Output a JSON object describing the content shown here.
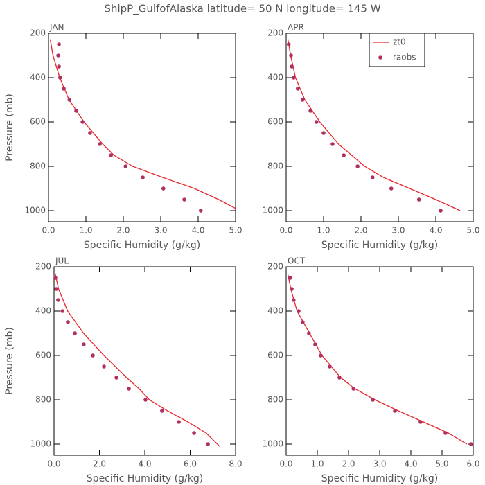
{
  "title": "ShipP_GulfofAlaska  latitude= 50 N longitude= 145 W",
  "chart_data": [
    {
      "type": "profile",
      "title": "JAN",
      "xlabel": "Specific Humidity (g/kg)",
      "ylabel": "Pressure (mb)",
      "xlim": [
        0,
        5
      ],
      "ylim": [
        200,
        1050
      ],
      "y_inverted": true,
      "xticks": [
        {
          "value": 0,
          "label": "0.0"
        },
        {
          "value": 1,
          "label": "1.0"
        },
        {
          "value": 2,
          "label": "2.0"
        },
        {
          "value": 3,
          "label": "3.0"
        },
        {
          "value": 4,
          "label": "4.0"
        },
        {
          "value": 5,
          "label": "5.0"
        }
      ],
      "yticks": [
        200,
        400,
        600,
        800,
        1000
      ],
      "series": [
        {
          "type": "line",
          "color": "#e8262a",
          "y": [
            230,
            300,
            400,
            500,
            600,
            700,
            750,
            800,
            850,
            900,
            950,
            990
          ],
          "x": [
            0.05,
            0.12,
            0.3,
            0.55,
            0.95,
            1.45,
            1.75,
            2.25,
            3.05,
            3.9,
            4.55,
            5.0
          ]
        },
        {
          "type": "scatter",
          "color": "#b03060",
          "y": [
            250,
            300,
            350,
            400,
            450,
            500,
            550,
            600,
            650,
            700,
            750,
            800,
            850,
            900,
            950,
            1000
          ],
          "x": [
            0.28,
            0.26,
            0.28,
            0.31,
            0.41,
            0.56,
            0.74,
            0.91,
            1.11,
            1.37,
            1.67,
            2.06,
            2.52,
            3.07,
            3.63,
            4.07
          ]
        }
      ]
    },
    {
      "type": "profile",
      "title": "APR",
      "xlabel": "Specific Humidity (g/kg)",
      "legend": "upper right",
      "xlim": [
        0,
        5
      ],
      "ylim": [
        200,
        1050
      ],
      "y_inverted": true,
      "xticks": [
        {
          "value": 0,
          "label": "0.0"
        },
        {
          "value": 1,
          "label": "1.0"
        },
        {
          "value": 2,
          "label": "2.0"
        },
        {
          "value": 3,
          "label": "3.0"
        },
        {
          "value": 4,
          "label": "4.0"
        },
        {
          "value": 5,
          "label": "5.0"
        }
      ],
      "yticks": [
        200,
        400,
        600,
        800,
        1000
      ],
      "series": [
        {
          "name": "zt0",
          "type": "line",
          "color": "#e8262a",
          "y": [
            230,
            300,
            400,
            500,
            600,
            700,
            800,
            850,
            900,
            950,
            1000
          ],
          "x": [
            0.05,
            0.12,
            0.25,
            0.5,
            0.9,
            1.4,
            2.1,
            2.6,
            3.3,
            4.0,
            4.65
          ]
        },
        {
          "name": "raobs",
          "type": "scatter",
          "color": "#b03060",
          "y": [
            250,
            300,
            350,
            400,
            450,
            500,
            550,
            600,
            650,
            700,
            750,
            800,
            850,
            900,
            950,
            1000
          ],
          "x": [
            0.07,
            0.13,
            0.15,
            0.2,
            0.31,
            0.44,
            0.65,
            0.81,
            1.0,
            1.24,
            1.54,
            1.91,
            2.31,
            2.81,
            3.55,
            4.13
          ]
        }
      ]
    },
    {
      "type": "profile",
      "title": "JUL",
      "xlabel": "Specific Humidity (g/kg)",
      "ylabel": "Pressure (mb)",
      "xlim": [
        0,
        8
      ],
      "ylim": [
        200,
        1050
      ],
      "y_inverted": true,
      "xticks": [
        {
          "value": 0,
          "label": "0.0"
        },
        {
          "value": 2,
          "label": "2.0"
        },
        {
          "value": 4,
          "label": "4.0"
        },
        {
          "value": 6,
          "label": "6.0"
        },
        {
          "value": 8,
          "label": "8.0"
        }
      ],
      "yticks": [
        200,
        400,
        600,
        800,
        1000
      ],
      "series": [
        {
          "type": "line",
          "color": "#e8262a",
          "y": [
            230,
            300,
            400,
            500,
            600,
            700,
            750,
            800,
            850,
            900,
            950,
            1010
          ],
          "x": [
            0.05,
            0.2,
            0.6,
            1.3,
            2.2,
            3.2,
            3.75,
            4.2,
            5.0,
            5.9,
            6.7,
            7.3
          ]
        },
        {
          "type": "scatter",
          "color": "#b03060",
          "y": [
            250,
            300,
            350,
            400,
            450,
            500,
            550,
            600,
            650,
            700,
            750,
            800,
            850,
            900,
            950,
            1000
          ],
          "x": [
            0.06,
            0.1,
            0.18,
            0.37,
            0.61,
            0.92,
            1.31,
            1.71,
            2.2,
            2.75,
            3.3,
            4.03,
            4.76,
            5.5,
            6.17,
            6.78
          ]
        }
      ]
    },
    {
      "type": "profile",
      "title": "OCT",
      "xlabel": "Specific Humidity (g/kg)",
      "xlim": [
        0,
        6
      ],
      "ylim": [
        200,
        1050
      ],
      "y_inverted": true,
      "xticks": [
        {
          "value": 0,
          "label": "0.0"
        },
        {
          "value": 1,
          "label": "1.0"
        },
        {
          "value": 2,
          "label": "2.0"
        },
        {
          "value": 3,
          "label": "3.0"
        },
        {
          "value": 4,
          "label": "4.0"
        },
        {
          "value": 5,
          "label": "5.0"
        },
        {
          "value": 6,
          "label": "6.0"
        }
      ],
      "yticks": [
        200,
        400,
        600,
        800,
        1000
      ],
      "series": [
        {
          "type": "line",
          "color": "#e8262a",
          "y": [
            230,
            300,
            400,
            500,
            600,
            700,
            750,
            800,
            850,
            900,
            950,
            1000
          ],
          "x": [
            0.05,
            0.15,
            0.35,
            0.75,
            1.15,
            1.75,
            2.2,
            2.85,
            3.6,
            4.4,
            5.2,
            5.8
          ]
        },
        {
          "type": "scatter",
          "color": "#b03060",
          "y": [
            250,
            300,
            350,
            400,
            450,
            500,
            550,
            600,
            650,
            700,
            750,
            800,
            850,
            900,
            950,
            1000
          ],
          "x": [
            0.13,
            0.18,
            0.24,
            0.4,
            0.53,
            0.73,
            0.93,
            1.11,
            1.4,
            1.71,
            2.16,
            2.78,
            3.49,
            4.31,
            5.11,
            5.93
          ]
        }
      ]
    }
  ]
}
